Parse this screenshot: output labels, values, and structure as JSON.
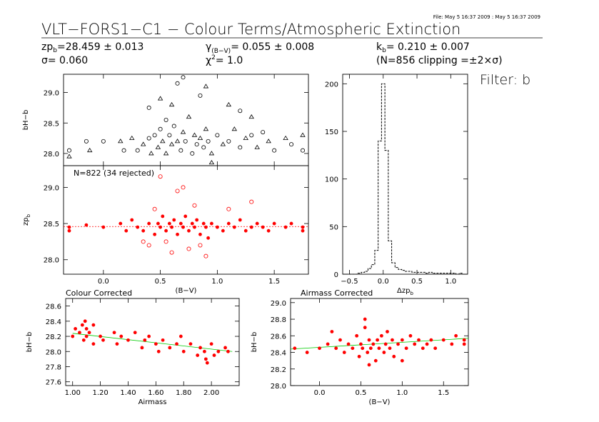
{
  "header": {
    "file_stamp": "File: May  5 16:37 2009 : May  5 16:37 2009",
    "title": "VLT−FORS1−C1 − Colour Terms/Atmospheric Extinction",
    "filter_label": "Filter: b",
    "stats": {
      "zp_name": "zp",
      "zp_sub": "b",
      "zp_value": "=28.459 ± 0.013",
      "sigma_text": "σ= 0.060",
      "gamma_name": "γ",
      "gamma_sub": "(B−V)",
      "gamma_value": "= 0.055 ± 0.008",
      "chi_name": "χ",
      "chi_sup": "2",
      "chi_value": "= 1.0",
      "k_name": "k",
      "k_sub": "b",
      "k_value": "= 0.210 ± 0.007",
      "clip_text": "(N=856 clipping =±2×σ)"
    }
  },
  "colors": {
    "raw_points": "#000000",
    "accepted": "#ff0000",
    "fit_line": "#ff0000",
    "trend_line": "#00cc00"
  },
  "chart_data": [
    {
      "id": "raw",
      "type": "scatter",
      "ylabel": "bH−b",
      "xlim": [
        -0.35,
        1.8
      ],
      "ylim": [
        27.8,
        29.3
      ],
      "yticks": [
        28.0,
        28.5,
        29.0
      ],
      "ytick_labels": [
        "28.0",
        "28.5",
        "29.0"
      ],
      "xticks": [
        0.0,
        0.5,
        1.0,
        1.5
      ],
      "series": [
        {
          "marker": "mixed",
          "points": [
            [
              -0.3,
              28.05
            ],
            [
              -0.3,
              27.95
            ],
            [
              -0.15,
              28.2
            ],
            [
              -0.12,
              28.05
            ],
            [
              0.0,
              28.2
            ],
            [
              0.15,
              28.2
            ],
            [
              0.18,
              28.05
            ],
            [
              0.25,
              28.25
            ],
            [
              0.3,
              28.05
            ],
            [
              0.35,
              28.15
            ],
            [
              0.4,
              28.25
            ],
            [
              0.42,
              28.0
            ],
            [
              0.45,
              28.3
            ],
            [
              0.48,
              28.1
            ],
            [
              0.5,
              28.4
            ],
            [
              0.52,
              28.2
            ],
            [
              0.55,
              28.55
            ],
            [
              0.55,
              28.0
            ],
            [
              0.58,
              28.3
            ],
            [
              0.6,
              28.15
            ],
            [
              0.62,
              28.45
            ],
            [
              0.65,
              28.2
            ],
            [
              0.68,
              28.05
            ],
            [
              0.7,
              28.35
            ],
            [
              0.72,
              28.2
            ],
            [
              0.75,
              28.6
            ],
            [
              0.78,
              28.0
            ],
            [
              0.8,
              28.3
            ],
            [
              0.82,
              28.15
            ],
            [
              0.85,
              28.25
            ],
            [
              0.88,
              28.1
            ],
            [
              0.9,
              28.4
            ],
            [
              0.92,
              28.2
            ],
            [
              0.95,
              28.0
            ],
            [
              1.0,
              28.3
            ],
            [
              1.05,
              28.15
            ],
            [
              1.1,
              28.2
            ],
            [
              1.15,
              28.4
            ],
            [
              1.2,
              28.1
            ],
            [
              1.25,
              28.25
            ],
            [
              1.3,
              28.3
            ],
            [
              1.35,
              28.1
            ],
            [
              1.4,
              28.35
            ],
            [
              1.45,
              28.2
            ],
            [
              1.5,
              28.05
            ],
            [
              1.6,
              28.25
            ],
            [
              1.65,
              28.15
            ],
            [
              1.75,
              28.3
            ],
            [
              1.75,
              28.05
            ],
            [
              0.5,
              28.9
            ],
            [
              0.7,
              29.25
            ],
            [
              0.9,
              29.1
            ],
            [
              0.85,
              28.95
            ],
            [
              1.1,
              28.8
            ],
            [
              1.2,
              28.7
            ],
            [
              1.3,
              28.6
            ],
            [
              0.4,
              28.75
            ],
            [
              0.6,
              28.8
            ],
            [
              0.65,
              29.15
            ],
            [
              0.95,
              27.85
            ]
          ]
        }
      ]
    },
    {
      "id": "zp",
      "type": "scatter",
      "annotation": "N=822 (34 rejected)",
      "ylabel": "zp",
      "ylabel_sub": "b",
      "xlabel": "(B−V)",
      "xlim": [
        -0.35,
        1.8
      ],
      "ylim": [
        27.8,
        29.3
      ],
      "yticks": [
        28.0,
        28.5,
        29.0
      ],
      "ytick_labels": [
        "28.0",
        "28.5",
        "29.0"
      ],
      "xticks": [
        0.0,
        0.5,
        1.0,
        1.5
      ],
      "xtick_labels": [
        "0.0",
        "0.5",
        "1.0",
        "1.5"
      ],
      "fit_value": 28.459,
      "series": [
        {
          "marker": "filled",
          "points": [
            [
              -0.3,
              28.45
            ],
            [
              -0.3,
              28.4
            ],
            [
              -0.15,
              28.48
            ],
            [
              0.0,
              28.45
            ],
            [
              0.15,
              28.5
            ],
            [
              0.2,
              28.4
            ],
            [
              0.25,
              28.55
            ],
            [
              0.3,
              28.45
            ],
            [
              0.35,
              28.4
            ],
            [
              0.4,
              28.5
            ],
            [
              0.45,
              28.35
            ],
            [
              0.48,
              28.5
            ],
            [
              0.5,
              28.45
            ],
            [
              0.52,
              28.6
            ],
            [
              0.55,
              28.4
            ],
            [
              0.58,
              28.5
            ],
            [
              0.6,
              28.45
            ],
            [
              0.62,
              28.55
            ],
            [
              0.65,
              28.35
            ],
            [
              0.68,
              28.5
            ],
            [
              0.7,
              28.45
            ],
            [
              0.72,
              28.6
            ],
            [
              0.75,
              28.4
            ],
            [
              0.78,
              28.5
            ],
            [
              0.8,
              28.45
            ],
            [
              0.82,
              28.55
            ],
            [
              0.85,
              28.35
            ],
            [
              0.88,
              28.5
            ],
            [
              0.9,
              28.45
            ],
            [
              0.92,
              28.3
            ],
            [
              0.95,
              28.5
            ],
            [
              1.0,
              28.45
            ],
            [
              1.05,
              28.4
            ],
            [
              1.1,
              28.5
            ],
            [
              1.15,
              28.45
            ],
            [
              1.2,
              28.55
            ],
            [
              1.25,
              28.4
            ],
            [
              1.3,
              28.45
            ],
            [
              1.35,
              28.5
            ],
            [
              1.4,
              28.45
            ],
            [
              1.45,
              28.4
            ],
            [
              1.5,
              28.5
            ],
            [
              1.6,
              28.45
            ],
            [
              1.65,
              28.5
            ],
            [
              1.75,
              28.4
            ],
            [
              1.75,
              28.45
            ]
          ]
        },
        {
          "name": "rejected",
          "marker": "open",
          "points": [
            [
              0.5,
              29.15
            ],
            [
              0.7,
              29.0
            ],
            [
              0.45,
              28.7
            ],
            [
              0.65,
              28.95
            ],
            [
              0.8,
              28.75
            ],
            [
              1.1,
              28.7
            ],
            [
              1.3,
              28.8
            ],
            [
              0.4,
              28.2
            ],
            [
              0.6,
              28.1
            ],
            [
              0.85,
              28.2
            ],
            [
              0.9,
              28.05
            ],
            [
              0.55,
              28.25
            ],
            [
              0.75,
              28.15
            ],
            [
              0.35,
              28.25
            ]
          ]
        }
      ]
    },
    {
      "id": "hist",
      "type": "bar",
      "style": "step",
      "xlabel": "Δzp",
      "xlabel_sub": "b",
      "xlim": [
        -0.6,
        1.25
      ],
      "ylim": [
        0,
        210
      ],
      "xticks": [
        -0.5,
        0.0,
        0.5,
        1.0
      ],
      "xtick_labels": [
        "−0.5",
        "0.0",
        "0.5",
        "1.0"
      ],
      "yticks": [
        0,
        50,
        100,
        150,
        200
      ],
      "ytick_labels": [
        "0",
        "50",
        "100",
        "150",
        "200"
      ],
      "x": [
        -0.35,
        -0.3,
        -0.25,
        -0.2,
        -0.15,
        -0.1,
        -0.05,
        0.0,
        0.05,
        0.1,
        0.15,
        0.2,
        0.25,
        0.3,
        0.35,
        0.4,
        0.45,
        0.5,
        0.55,
        0.6,
        0.65,
        0.7,
        0.75,
        0.8,
        0.85,
        0.9,
        0.95,
        1.0,
        1.05,
        1.1,
        1.15,
        1.2
      ],
      "values": [
        1,
        2,
        3,
        6,
        10,
        25,
        140,
        200,
        130,
        35,
        12,
        7,
        5,
        4,
        3,
        3,
        2,
        2,
        2,
        2,
        1,
        2,
        1,
        1,
        1,
        1,
        1,
        1,
        1,
        0,
        1,
        0
      ]
    },
    {
      "id": "colour",
      "type": "scatter",
      "title": "Colour Corrected",
      "ylabel": "bH−b",
      "xlabel": "Airmass",
      "xlim": [
        0.95,
        2.2
      ],
      "ylim": [
        27.55,
        28.7
      ],
      "xticks": [
        1.0,
        1.2,
        1.4,
        1.6,
        1.8,
        2.0
      ],
      "xtick_labels": [
        "1.00",
        "1.20",
        "1.40",
        "1.60",
        "1.80",
        "2.00"
      ],
      "yticks": [
        27.6,
        27.8,
        28.0,
        28.2,
        28.4,
        28.6
      ],
      "ytick_labels": [
        "27.6",
        "27.8",
        "28.0",
        "28.2",
        "28.4",
        "28.6"
      ],
      "trend_line": [
        [
          1.0,
          28.24
        ],
        [
          2.15,
          28.0
        ]
      ],
      "series": [
        {
          "marker": "filled",
          "points": [
            [
              1.0,
              28.2
            ],
            [
              1.02,
              28.3
            ],
            [
              1.05,
              28.25
            ],
            [
              1.07,
              28.35
            ],
            [
              1.08,
              28.15
            ],
            [
              1.09,
              28.4
            ],
            [
              1.1,
              28.2
            ],
            [
              1.1,
              28.3
            ],
            [
              1.12,
              28.25
            ],
            [
              1.15,
              28.1
            ],
            [
              1.15,
              28.35
            ],
            [
              1.2,
              28.2
            ],
            [
              1.22,
              28.15
            ],
            [
              1.3,
              28.25
            ],
            [
              1.32,
              28.1
            ],
            [
              1.35,
              28.2
            ],
            [
              1.4,
              28.15
            ],
            [
              1.45,
              28.25
            ],
            [
              1.5,
              28.05
            ],
            [
              1.52,
              28.15
            ],
            [
              1.55,
              28.2
            ],
            [
              1.6,
              28.1
            ],
            [
              1.62,
              28.0
            ],
            [
              1.65,
              28.15
            ],
            [
              1.7,
              28.05
            ],
            [
              1.75,
              28.1
            ],
            [
              1.78,
              28.2
            ],
            [
              1.8,
              28.0
            ],
            [
              1.85,
              28.1
            ],
            [
              1.9,
              27.95
            ],
            [
              1.92,
              28.05
            ],
            [
              1.95,
              28.0
            ],
            [
              2.0,
              28.1
            ],
            [
              2.02,
              27.95
            ],
            [
              2.05,
              28.0
            ],
            [
              2.1,
              28.05
            ],
            [
              2.12,
              28.0
            ],
            [
              1.96,
              27.9
            ],
            [
              1.97,
              27.85
            ]
          ]
        }
      ]
    },
    {
      "id": "airmass",
      "type": "scatter",
      "title": "Airmass Corrected",
      "ylabel": "bH−b",
      "xlabel": "(B−V)",
      "xlim": [
        -0.35,
        1.8
      ],
      "ylim": [
        28.0,
        29.05
      ],
      "xticks": [
        0.0,
        0.5,
        1.0,
        1.5
      ],
      "xtick_labels": [
        "0.0",
        "0.5",
        "1.0",
        "1.5"
      ],
      "yticks": [
        28.0,
        28.2,
        28.4,
        28.6,
        28.8,
        29.0
      ],
      "ytick_labels": [
        "28.0",
        "28.2",
        "28.4",
        "28.6",
        "28.8",
        "29.0"
      ],
      "trend_line": [
        [
          -0.35,
          28.44
        ],
        [
          1.8,
          28.57
        ]
      ],
      "series": [
        {
          "marker": "filled",
          "points": [
            [
              -0.3,
              28.45
            ],
            [
              -0.15,
              28.4
            ],
            [
              0.0,
              28.45
            ],
            [
              0.1,
              28.5
            ],
            [
              0.2,
              28.45
            ],
            [
              0.25,
              28.55
            ],
            [
              0.3,
              28.4
            ],
            [
              0.35,
              28.5
            ],
            [
              0.4,
              28.45
            ],
            [
              0.45,
              28.6
            ],
            [
              0.48,
              28.35
            ],
            [
              0.5,
              28.5
            ],
            [
              0.52,
              28.45
            ],
            [
              0.55,
              28.7
            ],
            [
              0.58,
              28.4
            ],
            [
              0.6,
              28.55
            ],
            [
              0.62,
              28.45
            ],
            [
              0.65,
              28.5
            ],
            [
              0.68,
              28.3
            ],
            [
              0.7,
              28.55
            ],
            [
              0.72,
              28.45
            ],
            [
              0.75,
              28.6
            ],
            [
              0.78,
              28.4
            ],
            [
              0.8,
              28.5
            ],
            [
              0.82,
              28.65
            ],
            [
              0.85,
              28.45
            ],
            [
              0.88,
              28.55
            ],
            [
              0.9,
              28.35
            ],
            [
              0.95,
              28.5
            ],
            [
              1.0,
              28.55
            ],
            [
              1.05,
              28.45
            ],
            [
              1.1,
              28.6
            ],
            [
              1.15,
              28.5
            ],
            [
              1.2,
              28.55
            ],
            [
              1.25,
              28.45
            ],
            [
              1.3,
              28.5
            ],
            [
              1.35,
              28.55
            ],
            [
              1.4,
              28.45
            ],
            [
              1.5,
              28.55
            ],
            [
              1.6,
              28.5
            ],
            [
              1.65,
              28.6
            ],
            [
              1.75,
              28.55
            ],
            [
              1.75,
              28.5
            ],
            [
              0.55,
              28.8
            ],
            [
              0.15,
              28.65
            ],
            [
              0.6,
              28.25
            ],
            [
              1.0,
              28.3
            ]
          ]
        }
      ]
    }
  ]
}
